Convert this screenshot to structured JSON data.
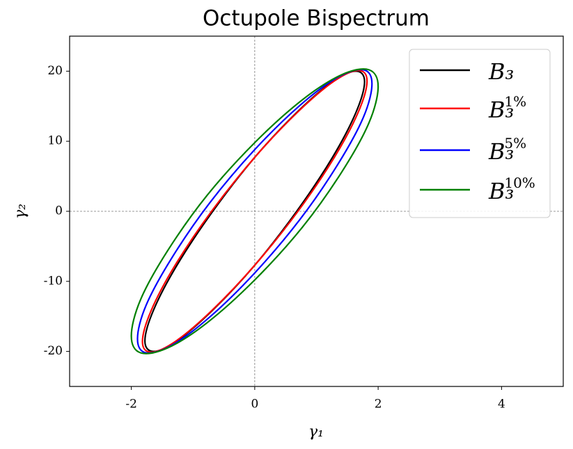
{
  "chart_data": {
    "type": "line",
    "title": "Octupole Bispectrum",
    "xlabel": "γ₁",
    "ylabel": "γ₂",
    "xlim": [
      -3,
      5
    ],
    "ylim": [
      -25,
      25
    ],
    "xticks": [
      -2,
      0,
      2,
      4
    ],
    "yticks": [
      -20,
      -10,
      0,
      10,
      20
    ],
    "vlines": [
      0
    ],
    "hlines": [
      0
    ],
    "closed": true,
    "legend": "upper right",
    "series": [
      {
        "name": "B₃",
        "color": "#000000",
        "x": [
          1.78,
          1.64,
          1.26,
          0.68,
          0,
          -0.68,
          -1.26,
          -1.64,
          -1.78,
          -1.64,
          -1.26,
          -0.68,
          0,
          0.68,
          1.26,
          1.64
        ],
        "y": [
          18.5,
          14.1,
          7.7,
          0,
          -7.7,
          -14.1,
          -18.5,
          -20,
          -18.5,
          -14.1,
          -7.7,
          0,
          7.7,
          14.1,
          18.5,
          20
        ]
      },
      {
        "name": "B₃",
        "superscript": "1%",
        "color": "#ff0000",
        "x": [
          1.82,
          1.68,
          1.29,
          0.7,
          0,
          -0.7,
          -1.29,
          -1.68,
          -1.82,
          -1.68,
          -1.29,
          -0.7,
          0,
          0.7,
          1.29,
          1.68
        ],
        "y": [
          18.6,
          14.2,
          7.7,
          0,
          -7.7,
          -14.2,
          -18.6,
          -20.1,
          -18.6,
          -14.2,
          -7.7,
          0,
          7.7,
          14.2,
          18.6,
          20.1
        ]
      },
      {
        "name": "B₃",
        "superscript": "5%",
        "color": "#0000ff",
        "x": [
          1.9,
          1.76,
          1.34,
          0.73,
          0,
          -0.73,
          -1.34,
          -1.76,
          -1.9,
          -1.76,
          -1.34,
          -0.73,
          0,
          0.73,
          1.34,
          1.76
        ],
        "y": [
          18.2,
          13.4,
          6.6,
          -1.2,
          -8.8,
          -15.1,
          -19.1,
          -20.2,
          -18.2,
          -13.4,
          -6.6,
          1.2,
          8.8,
          15.1,
          19.1,
          20.2
        ]
      },
      {
        "name": "B₃",
        "superscript": "10%",
        "color": "#008000",
        "x": [
          2,
          1.85,
          1.41,
          0.77,
          0,
          -0.77,
          -1.41,
          -1.85,
          -2,
          -1.85,
          -1.41,
          -0.77,
          0,
          0.77,
          1.41,
          1.85
        ],
        "y": [
          17.8,
          12.6,
          5.6,
          -2.3,
          -9.8,
          -15.9,
          -19.5,
          -20.2,
          -17.8,
          -12.6,
          -5.6,
          2.3,
          9.8,
          15.9,
          19.5,
          20.2
        ]
      }
    ]
  }
}
